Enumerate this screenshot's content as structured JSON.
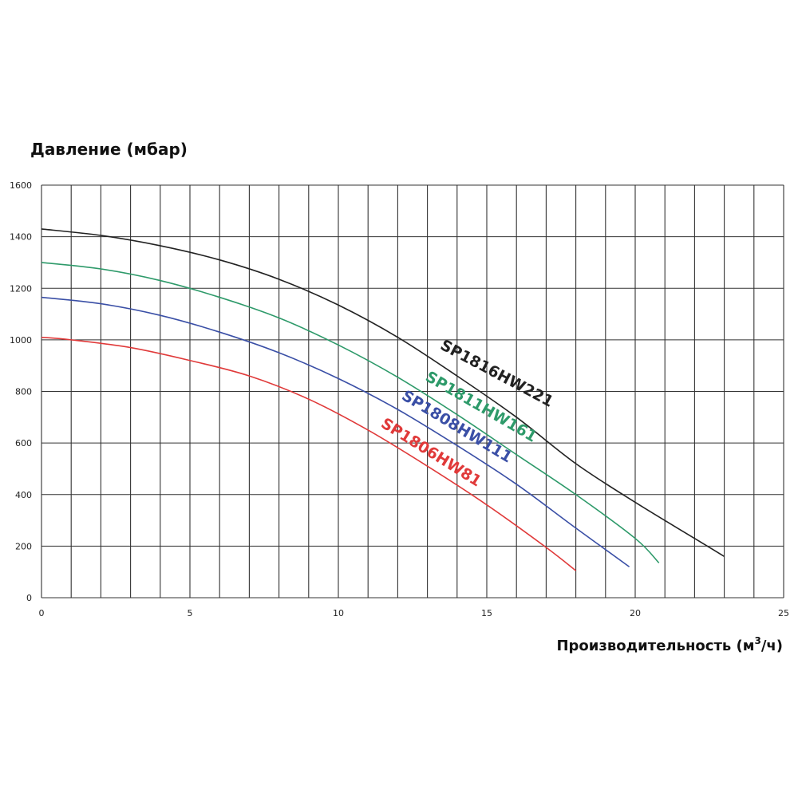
{
  "chart_data": {
    "type": "line",
    "ylabel": "Давление (мбар)",
    "xlabel": "Производительность (м",
    "xlabel_sup": "3",
    "xlabel_tail": "/ч)",
    "xlim": [
      0,
      25
    ],
    "ylim": [
      0,
      1600
    ],
    "x_ticks": [
      "0",
      "5",
      "10",
      "15",
      "20",
      "25"
    ],
    "y_ticks": [
      "0",
      "200",
      "400",
      "600",
      "800",
      "1000",
      "1200",
      "1400",
      "1600"
    ],
    "grid": true,
    "series": [
      {
        "name": "SP1816HW221",
        "color": "#222222",
        "x": [
          0,
          2,
          4,
          6,
          8,
          10,
          12,
          14,
          16,
          18,
          20,
          22,
          23
        ],
        "y": [
          1430,
          1405,
          1365,
          1310,
          1235,
          1135,
          1010,
          860,
          700,
          520,
          370,
          230,
          160
        ]
      },
      {
        "name": "SP1811HW161",
        "color": "#2e9a6a",
        "x": [
          0,
          2,
          4,
          6,
          8,
          10,
          12,
          14,
          16,
          18,
          20,
          20.8
        ],
        "y": [
          1300,
          1275,
          1230,
          1165,
          1085,
          980,
          855,
          710,
          555,
          400,
          230,
          135
        ]
      },
      {
        "name": "SP1808HW111",
        "color": "#3a4fa6",
        "x": [
          0,
          2,
          4,
          6,
          8,
          10,
          12,
          14,
          16,
          18,
          19.8
        ],
        "y": [
          1165,
          1140,
          1095,
          1030,
          950,
          850,
          730,
          590,
          440,
          270,
          120
        ]
      },
      {
        "name": "SP1806HW81",
        "color": "#e03a3a",
        "x": [
          0,
          1,
          3,
          5,
          7,
          9,
          11,
          13,
          15,
          17,
          18
        ],
        "y": [
          1010,
          1000,
          970,
          920,
          860,
          770,
          650,
          510,
          360,
          195,
          105
        ]
      }
    ]
  }
}
